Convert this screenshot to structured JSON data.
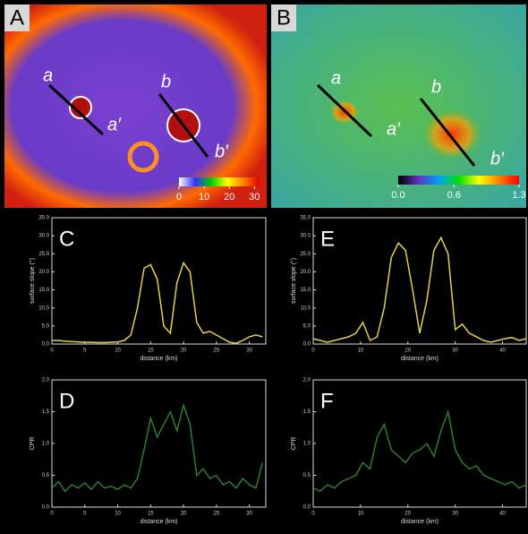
{
  "panels": [
    {
      "label": "A",
      "profiles": [
        "a",
        "a′",
        "b",
        "b′"
      ],
      "colorbar": {
        "lim": [
          0,
          32
        ],
        "ticks": [
          0,
          10,
          20,
          30
        ],
        "colors": [
          "#ffffff",
          "#3030ff",
          "#00d000",
          "#ffff00",
          "#ff8000",
          "#e00000"
        ]
      }
    },
    {
      "label": "B",
      "profiles": [
        "a",
        "a′",
        "b",
        "b′"
      ],
      "colorbar": {
        "lim": [
          0,
          1.3
        ],
        "ticks": [
          {
            "value": 0,
            "label": "0.0"
          },
          0.6,
          1.3
        ],
        "colors": [
          "#000000",
          "#6030c0",
          "#00a0ff",
          "#00e000",
          "#ffff00",
          "#ff8000",
          "#ff0000"
        ]
      }
    }
  ],
  "chart_data": [
    {
      "type": "line",
      "label": "C",
      "x_label": "distance (km)",
      "y_label": "surface slope (°)",
      "color": "#e8d048",
      "xlim": [
        0,
        32.5
      ],
      "ylim": [
        0,
        35
      ],
      "xticks": [
        0,
        5,
        10,
        15,
        20,
        25,
        30
      ],
      "yticks": [
        {
          "value": 0,
          "label": "0.0"
        },
        {
          "value": 5,
          "label": "5.0"
        },
        {
          "value": 10,
          "label": "10.0"
        },
        {
          "value": 15,
          "label": "15.0"
        },
        {
          "value": 20,
          "label": "20.0"
        },
        {
          "value": 25,
          "label": "25.0"
        },
        {
          "value": 30,
          "label": "30.0"
        },
        {
          "value": 35,
          "label": "35.0"
        }
      ],
      "x": [
        0,
        1,
        2,
        3,
        4,
        5,
        6,
        7,
        8,
        9,
        10,
        11,
        12,
        13,
        14,
        15,
        16,
        17,
        18,
        19,
        20,
        21,
        22,
        23,
        24,
        25,
        26,
        27,
        28,
        29,
        30,
        31,
        32
      ],
      "values": [
        1,
        1,
        0.8,
        0.7,
        0.6,
        0.5,
        0.5,
        0.4,
        0.4,
        0.5,
        0.6,
        1,
        2.5,
        10,
        21,
        22,
        18,
        5,
        3,
        17,
        22.5,
        20,
        6,
        3,
        3.5,
        2.5,
        1.5,
        0.5,
        0.2,
        1,
        2,
        2.5,
        2
      ]
    },
    {
      "type": "line",
      "label": "E",
      "x_label": "distance (km)",
      "y_label": "surface slope (°)",
      "color": "#e8d048",
      "xlim": [
        0,
        45
      ],
      "ylim": [
        0,
        35
      ],
      "xticks": [
        0,
        10,
        20,
        30,
        40
      ],
      "yticks": [
        {
          "value": 0,
          "label": "0.0"
        },
        {
          "value": 5,
          "label": "5.0"
        },
        {
          "value": 10,
          "label": "10.0"
        },
        {
          "value": 15,
          "label": "15.0"
        },
        {
          "value": 20,
          "label": "20.0"
        },
        {
          "value": 25,
          "label": "25.0"
        },
        {
          "value": 30,
          "label": "30.0"
        },
        {
          "value": 35,
          "label": "35.0"
        }
      ],
      "x": [
        0,
        1.5,
        3,
        4.5,
        6,
        7.5,
        9,
        10.5,
        12,
        13.5,
        15,
        16.5,
        18,
        19.5,
        21,
        22.5,
        24,
        25.5,
        27,
        28.5,
        30,
        31.5,
        33,
        34.5,
        36,
        37.5,
        39,
        40.5,
        42,
        43.5,
        45
      ],
      "values": [
        1.5,
        1,
        0.5,
        1,
        1.5,
        2,
        3,
        6,
        1,
        2,
        10,
        24,
        28,
        26,
        15,
        3,
        12,
        26,
        29.5,
        25,
        4,
        5.5,
        3,
        2,
        1,
        0.5,
        1,
        1.5,
        1.8,
        1,
        1.5
      ]
    },
    {
      "type": "line",
      "label": "D",
      "x_label": "distance (km)",
      "y_label": "CPR",
      "color": "#2e7d2e",
      "xlim": [
        0,
        32.5
      ],
      "ylim": [
        0,
        2
      ],
      "xticks": [
        0,
        5,
        10,
        15,
        20,
        25,
        30
      ],
      "yticks": [
        {
          "value": 0,
          "label": "0.0"
        },
        {
          "value": 0.5,
          "label": "0.5"
        },
        {
          "value": 1,
          "label": "1.0"
        },
        {
          "value": 1.5,
          "label": "1.5"
        },
        {
          "value": 2,
          "label": "2.0"
        }
      ],
      "x": [
        0,
        1,
        2,
        3,
        4,
        5,
        6,
        7,
        8,
        9,
        10,
        11,
        12,
        13,
        14,
        15,
        16,
        17,
        18,
        19,
        20,
        21,
        22,
        23,
        24,
        25,
        26,
        27,
        28,
        29,
        30,
        31,
        32
      ],
      "values": [
        0.3,
        0.4,
        0.25,
        0.35,
        0.3,
        0.38,
        0.28,
        0.4,
        0.3,
        0.33,
        0.28,
        0.35,
        0.3,
        0.45,
        0.9,
        1.4,
        1.1,
        1.3,
        1.5,
        1.2,
        1.6,
        1.3,
        0.5,
        0.6,
        0.45,
        0.5,
        0.35,
        0.4,
        0.3,
        0.45,
        0.35,
        0.3,
        0.7
      ]
    },
    {
      "type": "line",
      "label": "F",
      "x_label": "distance (km)",
      "y_label": "CPR",
      "color": "#2e7d2e",
      "xlim": [
        0,
        45
      ],
      "ylim": [
        0,
        2
      ],
      "xticks": [
        0,
        10,
        20,
        30,
        40
      ],
      "yticks": [
        {
          "value": 0,
          "label": "0.0"
        },
        {
          "value": 0.5,
          "label": "0.5"
        },
        {
          "value": 1,
          "label": "1.0"
        },
        {
          "value": 1.5,
          "label": "1.5"
        },
        {
          "value": 2,
          "label": "2.0"
        }
      ],
      "x": [
        0,
        1.5,
        3,
        4.5,
        6,
        7.5,
        9,
        10.5,
        12,
        13.5,
        15,
        16.5,
        18,
        19.5,
        21,
        22.5,
        24,
        25.5,
        27,
        28.5,
        30,
        31.5,
        33,
        34.5,
        36,
        37.5,
        39,
        40.5,
        42,
        43.5,
        45
      ],
      "values": [
        0.3,
        0.25,
        0.35,
        0.3,
        0.4,
        0.45,
        0.5,
        0.7,
        0.6,
        1.1,
        1.3,
        0.9,
        0.8,
        0.7,
        0.85,
        0.9,
        1,
        0.8,
        1.2,
        1.5,
        0.9,
        0.7,
        0.6,
        0.65,
        0.5,
        0.45,
        0.4,
        0.35,
        0.4,
        0.3,
        0.35
      ]
    }
  ]
}
